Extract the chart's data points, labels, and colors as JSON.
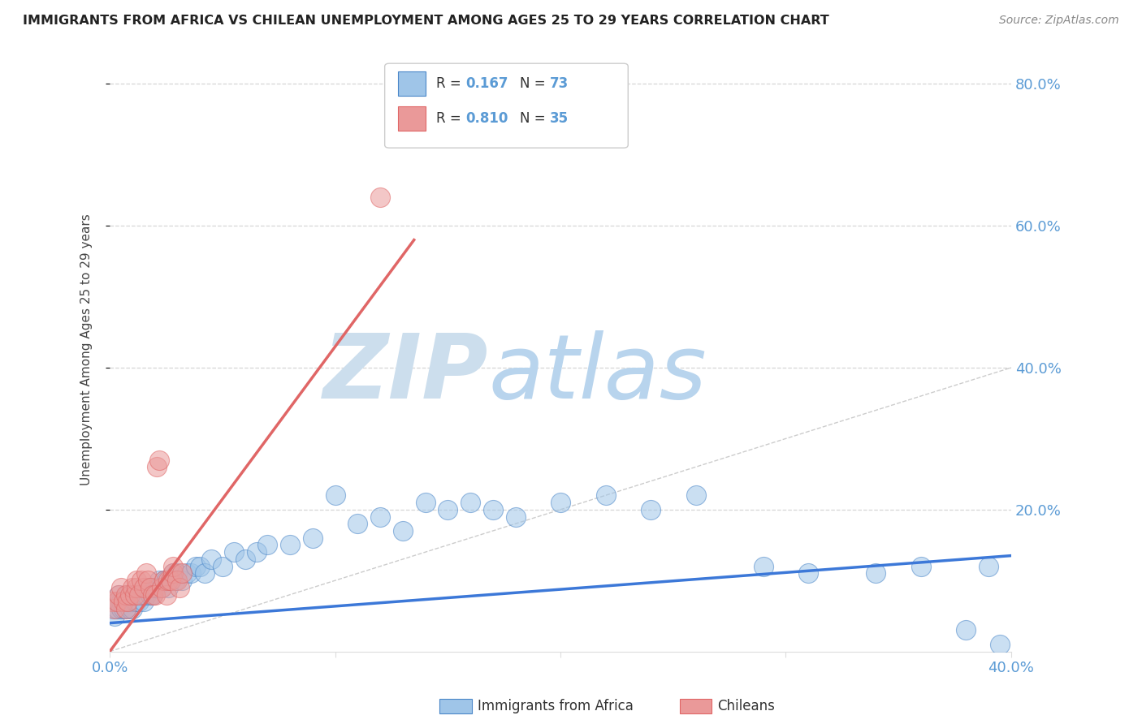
{
  "title": "IMMIGRANTS FROM AFRICA VS CHILEAN UNEMPLOYMENT AMONG AGES 25 TO 29 YEARS CORRELATION CHART",
  "source": "Source: ZipAtlas.com",
  "ylabel": "Unemployment Among Ages 25 to 29 years",
  "xmin": 0.0,
  "xmax": 0.4,
  "ymin": 0.0,
  "ymax": 0.85,
  "ytick_vals": [
    0.2,
    0.4,
    0.6,
    0.8
  ],
  "ytick_labels": [
    "20.0%",
    "40.0%",
    "60.0%",
    "80.0%"
  ],
  "xtick_vals": [
    0.0,
    0.4
  ],
  "xtick_labels": [
    "0.0%",
    "40.0%"
  ],
  "color_blue": "#9fc5e8",
  "color_pink": "#ea9999",
  "color_blue_edge": "#4a86c8",
  "color_pink_edge": "#e06666",
  "color_blue_line": "#3c78d8",
  "color_pink_line": "#e06666",
  "watermark_zip": "#cce0f5",
  "watermark_atlas": "#b8d4f0",
  "background_color": "#ffffff",
  "grid_color": "#cccccc",
  "blue_line_x0": 0.0,
  "blue_line_x1": 0.4,
  "blue_line_y0": 0.04,
  "blue_line_y1": 0.135,
  "pink_line_x0": 0.0,
  "pink_line_x1": 0.135,
  "pink_line_y0": 0.0,
  "pink_line_y1": 0.58,
  "scatter_blue_x": [
    0.001,
    0.002,
    0.003,
    0.003,
    0.004,
    0.004,
    0.005,
    0.005,
    0.006,
    0.006,
    0.007,
    0.007,
    0.008,
    0.008,
    0.009,
    0.009,
    0.01,
    0.01,
    0.011,
    0.012,
    0.013,
    0.014,
    0.015,
    0.015,
    0.016,
    0.017,
    0.018,
    0.019,
    0.02,
    0.021,
    0.022,
    0.023,
    0.024,
    0.025,
    0.026,
    0.027,
    0.028,
    0.029,
    0.03,
    0.032,
    0.034,
    0.036,
    0.038,
    0.04,
    0.042,
    0.045,
    0.05,
    0.055,
    0.06,
    0.065,
    0.07,
    0.08,
    0.09,
    0.1,
    0.11,
    0.12,
    0.13,
    0.14,
    0.15,
    0.16,
    0.17,
    0.18,
    0.2,
    0.22,
    0.24,
    0.26,
    0.29,
    0.31,
    0.34,
    0.36,
    0.39,
    0.38,
    0.395
  ],
  "scatter_blue_y": [
    0.06,
    0.05,
    0.06,
    0.07,
    0.07,
    0.08,
    0.06,
    0.07,
    0.07,
    0.06,
    0.06,
    0.07,
    0.07,
    0.08,
    0.07,
    0.06,
    0.07,
    0.06,
    0.07,
    0.07,
    0.07,
    0.08,
    0.07,
    0.08,
    0.08,
    0.09,
    0.08,
    0.08,
    0.09,
    0.09,
    0.1,
    0.09,
    0.1,
    0.1,
    0.09,
    0.1,
    0.11,
    0.1,
    0.11,
    0.1,
    0.11,
    0.11,
    0.12,
    0.12,
    0.11,
    0.13,
    0.12,
    0.14,
    0.13,
    0.14,
    0.15,
    0.15,
    0.16,
    0.22,
    0.18,
    0.19,
    0.17,
    0.21,
    0.2,
    0.21,
    0.2,
    0.19,
    0.21,
    0.22,
    0.2,
    0.22,
    0.12,
    0.11,
    0.11,
    0.12,
    0.12,
    0.03,
    0.01
  ],
  "scatter_pink_x": [
    0.001,
    0.002,
    0.003,
    0.004,
    0.005,
    0.006,
    0.007,
    0.007,
    0.008,
    0.009,
    0.01,
    0.011,
    0.012,
    0.012,
    0.013,
    0.014,
    0.015,
    0.016,
    0.017,
    0.018,
    0.019,
    0.02,
    0.021,
    0.022,
    0.023,
    0.024,
    0.025,
    0.026,
    0.027,
    0.028,
    0.028,
    0.03,
    0.031,
    0.032,
    0.12
  ],
  "scatter_pink_y": [
    0.07,
    0.06,
    0.07,
    0.08,
    0.09,
    0.07,
    0.06,
    0.08,
    0.07,
    0.08,
    0.09,
    0.08,
    0.09,
    0.1,
    0.08,
    0.1,
    0.09,
    0.11,
    0.1,
    0.09,
    0.08,
    0.08,
    0.26,
    0.27,
    0.09,
    0.1,
    0.08,
    0.1,
    0.1,
    0.11,
    0.12,
    0.1,
    0.09,
    0.11,
    0.64
  ],
  "legend_r1": "0.167",
  "legend_n1": "73",
  "legend_r2": "0.810",
  "legend_n2": "35"
}
